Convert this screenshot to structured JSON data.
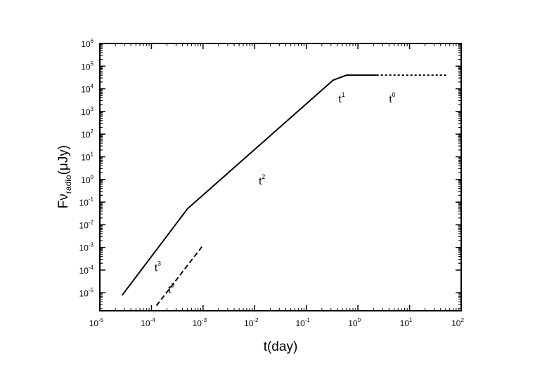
{
  "chart_data": {
    "type": "line",
    "title": "",
    "xlabel": "t(day)",
    "ylabel": {
      "prefix": "Fν",
      "subscript": "radio",
      "suffix": "(μJy)"
    },
    "xscale": "log",
    "yscale": "log",
    "xlim": [
      1e-05,
      100
    ],
    "ylim": [
      1.6e-06,
      1000000
    ],
    "x_ticks": [
      {
        "base": "10",
        "exp": "-5"
      },
      {
        "base": "10",
        "exp": "-4"
      },
      {
        "base": "10",
        "exp": "-3"
      },
      {
        "base": "10",
        "exp": "-2"
      },
      {
        "base": "10",
        "exp": "-1"
      },
      {
        "base": "10",
        "exp": "0"
      },
      {
        "base": "10",
        "exp": "1"
      },
      {
        "base": "10",
        "exp": "2"
      }
    ],
    "y_ticks": [
      {
        "base": "10",
        "exp": "-5"
      },
      {
        "base": "10",
        "exp": "-4"
      },
      {
        "base": "10",
        "exp": "-3"
      },
      {
        "base": "10",
        "exp": "-2"
      },
      {
        "base": "10",
        "exp": "-1"
      },
      {
        "base": "10",
        "exp": "0"
      },
      {
        "base": "10",
        "exp": "1"
      },
      {
        "base": "10",
        "exp": "2"
      },
      {
        "base": "10",
        "exp": "3"
      },
      {
        "base": "10",
        "exp": "4"
      },
      {
        "base": "10",
        "exp": "5"
      },
      {
        "base": "10",
        "exp": "6"
      }
    ],
    "grid": false,
    "series": [
      {
        "style": "solid",
        "color": "#000000",
        "points": [
          [
            2.7e-05,
            7.7e-06
          ],
          [
            0.0005,
            0.051
          ],
          [
            0.33,
            24000
          ],
          [
            0.6,
            40000
          ],
          [
            2.3,
            40000
          ]
        ]
      },
      {
        "style": "dotted",
        "color": "#000000",
        "points": [
          [
            2.3,
            40000
          ],
          [
            55,
            40000
          ]
        ]
      },
      {
        "style": "dashed",
        "color": "#000000",
        "points": [
          [
            0.000125,
            2.7e-06
          ],
          [
            0.001,
            0.00125
          ]
        ]
      }
    ],
    "annotations": [
      {
        "base": "t",
        "exp": "1",
        "x": 0.42,
        "y": 2500
      },
      {
        "base": "t",
        "exp": "0",
        "x": 4.0,
        "y": 2500
      },
      {
        "base": "t",
        "exp": "2",
        "x": 0.012,
        "y": 0.6
      },
      {
        "base": "t",
        "exp": "3",
        "x": 0.000115,
        "y": 9e-05
      },
      {
        "base": "t",
        "exp": "3",
        "x": 0.00021,
        "y": 9.7e-06
      }
    ]
  }
}
